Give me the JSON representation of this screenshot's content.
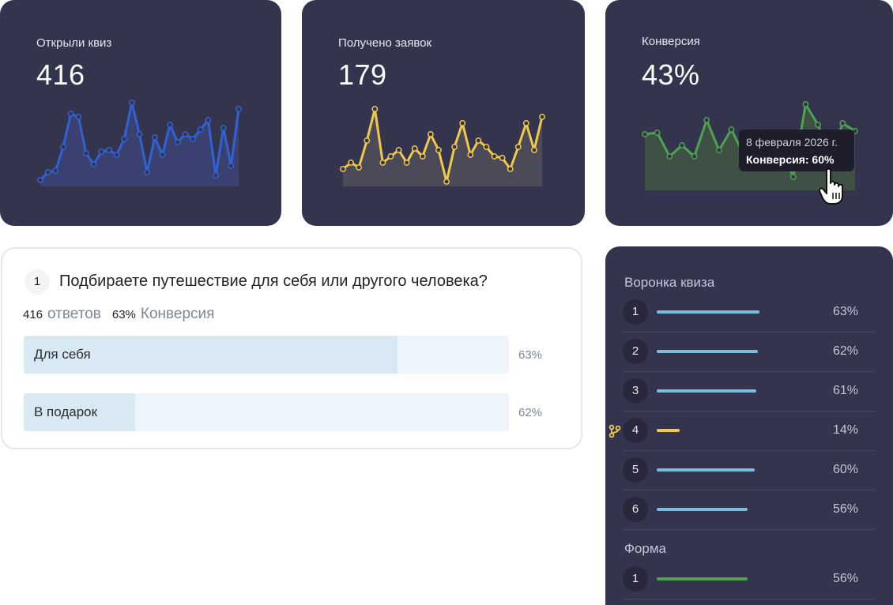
{
  "stats": [
    {
      "label": "Открыли квиз",
      "value": "416",
      "color": "#2f62d4",
      "area": "#3a4170",
      "series": [
        228,
        218,
        216,
        186,
        144,
        148,
        194,
        208,
        192,
        190,
        196,
        176,
        130,
        170,
        218,
        174,
        196,
        158,
        180,
        170,
        176,
        164,
        152,
        222,
        162,
        210,
        138
      ]
    },
    {
      "label": "Получено заявок",
      "value": "179",
      "color": "#f1c94a",
      "area": "#4a4a58",
      "series": [
        214,
        206,
        212,
        178,
        138,
        206,
        198,
        190,
        206,
        188,
        198,
        170,
        190,
        230,
        186,
        156,
        196,
        178,
        186,
        198,
        200,
        214,
        186,
        156,
        190,
        148
      ]
    },
    {
      "label": "Конверсия",
      "value": "43%",
      "color": "#4ea34f",
      "area": "#3f5145",
      "series": [
        170,
        168,
        198,
        184,
        198,
        152,
        190,
        164,
        196,
        168,
        198,
        186,
        224,
        132,
        158,
        198,
        156,
        166
      ]
    }
  ],
  "tooltip": {
    "date": "8 февраля 2026 г.",
    "value": "Конверсия: 60%"
  },
  "question": {
    "number": "1",
    "text": "Подбираете путешествие для себя или другого человека?",
    "answers_count": "416",
    "answers_label": "ответов",
    "conversion_value": "63%",
    "conversion_label": "Конверсия",
    "options": [
      {
        "label": "Для себя",
        "pct": "63%",
        "fill": 0.77
      },
      {
        "label": "В подарок",
        "pct": "62%",
        "fill": 0.23
      }
    ]
  },
  "funnel": {
    "title": "Воронка квиза",
    "steps": [
      {
        "num": "1",
        "pct": "63%",
        "fill": 0.63,
        "color": "#78bde0"
      },
      {
        "num": "2",
        "pct": "62%",
        "fill": 0.62,
        "color": "#78bde0"
      },
      {
        "num": "3",
        "pct": "61%",
        "fill": 0.61,
        "color": "#78bde0"
      },
      {
        "num": "4",
        "pct": "14%",
        "fill": 0.14,
        "color": "#f1c94a",
        "branch": true
      },
      {
        "num": "5",
        "pct": "60%",
        "fill": 0.6,
        "color": "#78bde0"
      },
      {
        "num": "6",
        "pct": "56%",
        "fill": 0.56,
        "color": "#78bde0"
      }
    ],
    "form_title": "Форма",
    "form_steps": [
      {
        "num": "1",
        "pct": "56%",
        "fill": 0.56,
        "color": "#4ea34f"
      }
    ]
  }
}
